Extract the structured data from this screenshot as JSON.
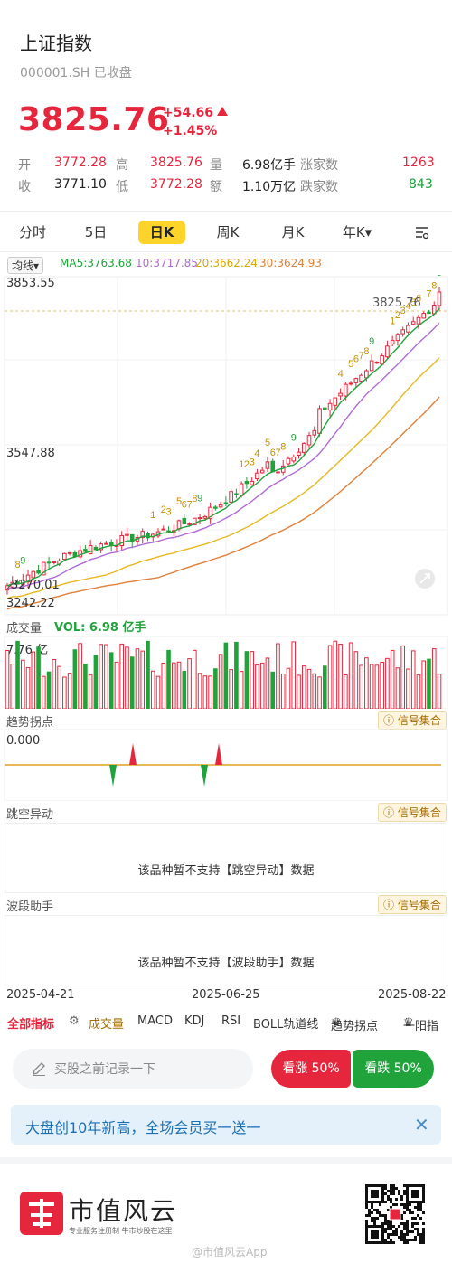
{
  "header": {
    "title": "上证指数",
    "subtitle": "000001.SH 已收盘",
    "price": "3825.76",
    "change": "+54.66",
    "change_pct": "+1.45%"
  },
  "stats": {
    "row1": [
      {
        "label": "开",
        "value": "3772.28"
      },
      {
        "label": "高",
        "value": "3825.76"
      },
      {
        "label": "量",
        "value": "6.98亿手"
      },
      {
        "label": "涨家数",
        "value": "1263"
      }
    ],
    "row2": [
      {
        "label": "收",
        "value": "3771.10"
      },
      {
        "label": "低",
        "value": "3772.28"
      },
      {
        "label": "额",
        "value": "1.10万亿"
      },
      {
        "label": "跌家数",
        "value": "843"
      }
    ]
  },
  "tabs": [
    "分时",
    "5日",
    "日K",
    "周K",
    "月K",
    "年K▾"
  ],
  "active_tab": "日K",
  "ma": {
    "selector": "均线▾",
    "ma5": "MA5:3763.68",
    "ma10": "10:3717.85",
    "ma20": "20:3662.24",
    "ma30": "30:3624.93",
    "colors": {
      "ma5": "#1fa33a",
      "ma10": "#b06ad8",
      "ma20": "#e8b820",
      "ma30": "#e0803a"
    }
  },
  "chart": {
    "y_top": "3853.55",
    "y_mid": "3547.88",
    "y_bottom": "3242.22",
    "last_price_label": "3825.76",
    "low_label": "3270.01"
  },
  "volume": {
    "label": "成交量",
    "vol_text": "VOL: 6.98 亿手",
    "max_label": "7.76 亿"
  },
  "trend": {
    "label": "趋势拐点",
    "value": "0.000",
    "signal": "信号集合"
  },
  "gap": {
    "label": "跳空异动",
    "signal": "信号集合",
    "message": "该品种暂不支持【跳空异动】数据"
  },
  "wave": {
    "label": "波段助手",
    "signal": "信号集合",
    "message": "该品种暂不支持【波段助手】数据"
  },
  "dates": [
    "2025-04-21",
    "2025-06-25",
    "2025-08-22"
  ],
  "indicators": {
    "all": "全部指标",
    "items": [
      "成交量",
      "MACD",
      "KDJ",
      "RSI",
      "BOLL轨道线",
      "趋势拐点",
      "一阳指"
    ]
  },
  "bottom": {
    "input_placeholder": "买股之前记录一下",
    "up_label": "看涨 50%",
    "down_label": "看跌 50%"
  },
  "banner": {
    "text": "大盘创10年新高，全场会员买一送一"
  },
  "footer": {
    "logo_text": "市值风云",
    "logo_sub": "专业服务注册制   牛市炒股在这里",
    "watermark": "@市值风云App"
  }
}
